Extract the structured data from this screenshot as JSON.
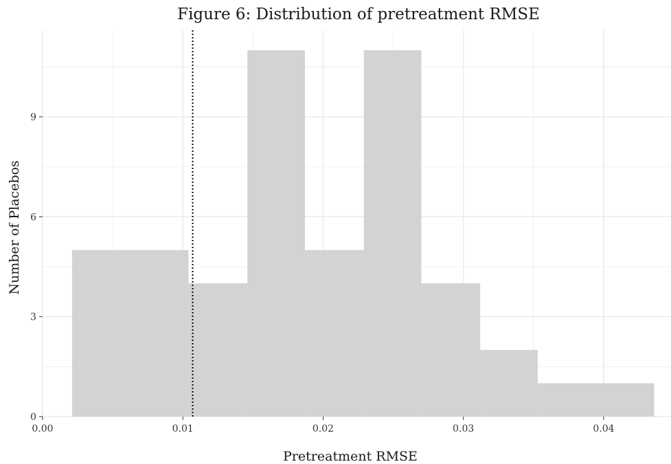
{
  "chart_data": {
    "type": "bar",
    "subtype": "histogram",
    "title": "Figure 6: Distribution of pretreatment RMSE",
    "xlabel": "Pretreatment RMSE",
    "ylabel": "Number of Placebos",
    "xlim": [
      0.0,
      0.0448
    ],
    "ylim": [
      0,
      11.6
    ],
    "x_ticks": [
      0.0,
      0.01,
      0.02,
      0.03,
      0.04
    ],
    "x_tick_labels": [
      "0.00",
      "0.01",
      "0.02",
      "0.03",
      "0.04"
    ],
    "y_ticks": [
      0,
      3,
      6,
      9
    ],
    "y_tick_labels": [
      "0",
      "3",
      "6",
      "9"
    ],
    "bins": [
      {
        "x0": 0.0021,
        "x1": 0.0104,
        "count": 5
      },
      {
        "x0": 0.0104,
        "x1": 0.0146,
        "count": 4
      },
      {
        "x0": 0.0146,
        "x1": 0.0187,
        "count": 11
      },
      {
        "x0": 0.0187,
        "x1": 0.0229,
        "count": 5
      },
      {
        "x0": 0.0229,
        "x1": 0.027,
        "count": 11
      },
      {
        "x0": 0.027,
        "x1": 0.0312,
        "count": 4
      },
      {
        "x0": 0.0312,
        "x1": 0.0353,
        "count": 2
      },
      {
        "x0": 0.0353,
        "x1": 0.0436,
        "count": 1
      }
    ],
    "reference_line": {
      "x": 0.0107,
      "style": "dotted"
    },
    "grid": true,
    "bar_color": "#d3d3d3",
    "grid_color": "#ebebeb",
    "reference_line_color": "#000000"
  }
}
